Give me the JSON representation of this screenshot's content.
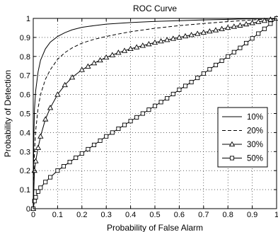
{
  "chart_data": {
    "type": "line",
    "title": "ROC Curve",
    "xlabel": "Probability of False Alarm",
    "ylabel": "Probability of Detection",
    "xlim": [
      0,
      1
    ],
    "ylim": [
      0,
      1
    ],
    "xticks": [
      0,
      0.1,
      0.2,
      0.3,
      0.4,
      0.5,
      0.6,
      0.7,
      0.8,
      0.9,
      1
    ],
    "xtick_labels": [
      "0",
      "0.1",
      "0.2",
      "0.3",
      "0.4",
      "0.5",
      "0.6",
      "0.7",
      "0.8",
      "0.9",
      "1"
    ],
    "yticks": [
      0,
      0.1,
      0.2,
      0.3,
      0.4,
      0.5,
      0.6,
      0.7,
      0.8,
      0.9,
      1
    ],
    "ytick_labels": [
      "0",
      "0.1",
      "0.2",
      "0.3",
      "0.4",
      "0.5",
      "0.6",
      "0.7",
      "0.8",
      "0.9",
      "1"
    ],
    "grid": true,
    "legend_position": "right",
    "series": [
      {
        "name": "10%",
        "line_style": "solid",
        "marker": "none",
        "color": "#000000",
        "x": [
          0,
          0.002,
          0.005,
          0.01,
          0.02,
          0.03,
          0.05,
          0.07,
          0.1,
          0.13,
          0.16,
          0.2,
          0.25,
          0.3,
          0.4,
          0.5,
          0.6,
          0.7,
          0.8,
          0.9,
          1
        ],
        "y": [
          0,
          0.35,
          0.52,
          0.62,
          0.72,
          0.78,
          0.84,
          0.875,
          0.905,
          0.925,
          0.94,
          0.953,
          0.962,
          0.97,
          0.978,
          0.984,
          0.988,
          0.992,
          0.995,
          0.998,
          1
        ]
      },
      {
        "name": "20%",
        "line_style": "dashed",
        "marker": "none",
        "color": "#000000",
        "x": [
          0,
          0.002,
          0.005,
          0.01,
          0.02,
          0.03,
          0.05,
          0.07,
          0.1,
          0.13,
          0.16,
          0.2,
          0.25,
          0.3,
          0.35,
          0.4,
          0.5,
          0.6,
          0.7,
          0.8,
          0.9,
          1
        ],
        "y": [
          0,
          0.18,
          0.3,
          0.41,
          0.53,
          0.6,
          0.68,
          0.73,
          0.785,
          0.82,
          0.845,
          0.87,
          0.89,
          0.905,
          0.918,
          0.93,
          0.948,
          0.962,
          0.973,
          0.983,
          0.992,
          1
        ]
      },
      {
        "name": "30%",
        "line_style": "solid",
        "marker": "triangle",
        "color": "#000000",
        "x": [
          0,
          0.005,
          0.01,
          0.02,
          0.03,
          0.05,
          0.07,
          0.1,
          0.13,
          0.16,
          0.2,
          0.25,
          0.3,
          0.35,
          0.4,
          0.45,
          0.5,
          0.55,
          0.6,
          0.65,
          0.7,
          0.75,
          0.8,
          0.85,
          0.9,
          0.95,
          1
        ],
        "y": [
          0,
          0.2,
          0.25,
          0.32,
          0.38,
          0.47,
          0.53,
          0.6,
          0.65,
          0.69,
          0.73,
          0.765,
          0.795,
          0.82,
          0.84,
          0.857,
          0.873,
          0.887,
          0.9,
          0.913,
          0.926,
          0.938,
          0.951,
          0.963,
          0.976,
          0.988,
          1
        ]
      },
      {
        "name": "50%",
        "line_style": "solid",
        "marker": "square",
        "color": "#000000",
        "x": [
          0,
          0.005,
          0.01,
          0.02,
          0.03,
          0.05,
          0.07,
          0.1,
          0.15,
          0.2,
          0.25,
          0.3,
          0.35,
          0.4,
          0.45,
          0.5,
          0.55,
          0.6,
          0.65,
          0.7,
          0.75,
          0.8,
          0.85,
          0.9,
          0.95,
          1
        ],
        "y": [
          0,
          0.04,
          0.06,
          0.09,
          0.11,
          0.14,
          0.165,
          0.2,
          0.245,
          0.29,
          0.335,
          0.38,
          0.42,
          0.46,
          0.5,
          0.54,
          0.58,
          0.625,
          0.665,
          0.71,
          0.755,
          0.8,
          0.845,
          0.895,
          0.945,
          1
        ]
      }
    ]
  }
}
